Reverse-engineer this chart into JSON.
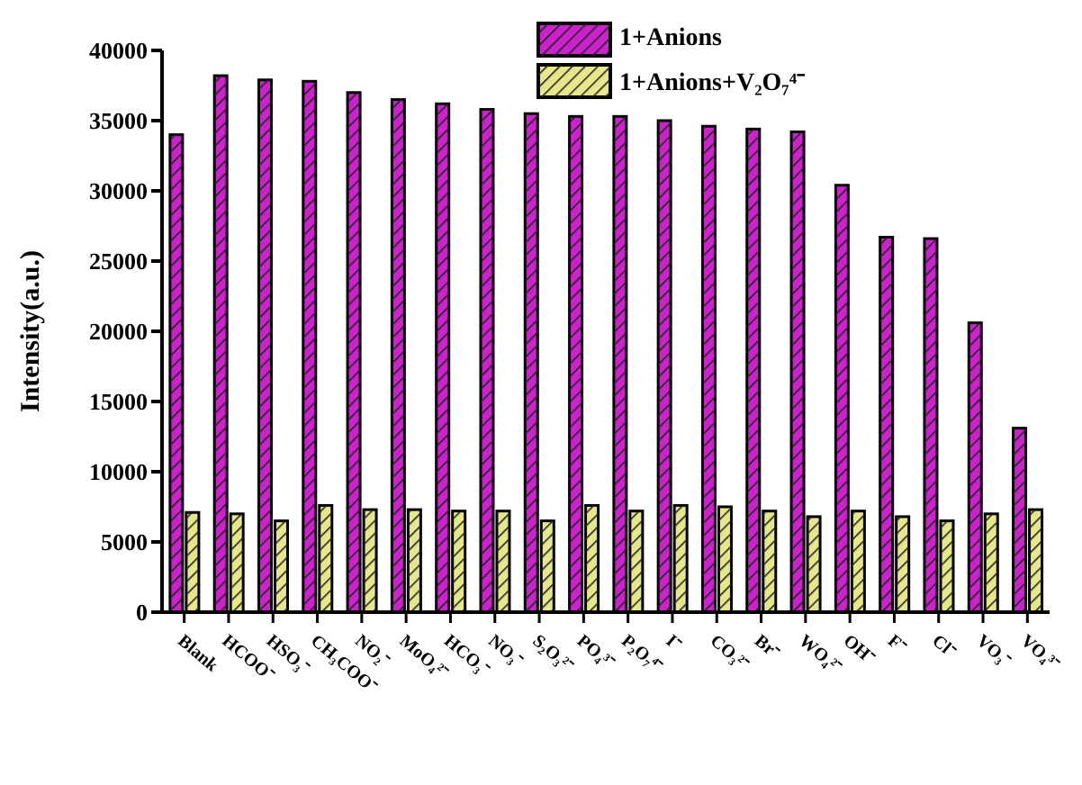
{
  "chart_data": {
    "type": "bar",
    "ylabel": "Intensity(a.u.)",
    "categories": [
      "Blank",
      "HCOO⁻",
      "HSO₃⁻",
      "CH₃COO⁻",
      "NO₂⁻",
      "MoO₄²⁻",
      "HCO₃⁻",
      "NO₃⁻",
      "S₂O₃²⁻",
      "PO₄³⁻",
      "P₂O₇⁴⁻",
      "I⁻",
      "CO₃²⁻",
      "Br⁻",
      "WO₄²⁻",
      "OH⁻",
      "F⁻",
      "Cl⁻",
      "VO₃⁻",
      "VO₄³⁻"
    ],
    "series": [
      {
        "name": "1+Anions",
        "color": "#cc22cc",
        "values": [
          34000,
          38200,
          37900,
          37800,
          37000,
          36500,
          36200,
          35800,
          35500,
          35300,
          35300,
          35000,
          34600,
          34400,
          34200,
          30400,
          26700,
          26600,
          20600,
          13100
        ]
      },
      {
        "name": "1+Anions+V₂O₇⁴⁻",
        "color": "#e6e68a",
        "values": [
          7100,
          7000,
          6500,
          7600,
          7300,
          7300,
          7200,
          7200,
          6500,
          7600,
          7200,
          7600,
          7500,
          7200,
          6800,
          7200,
          6800,
          6500,
          7000,
          7300
        ]
      }
    ],
    "ylim": [
      0,
      40000
    ],
    "yticks": [
      0,
      5000,
      10000,
      15000,
      20000,
      25000,
      30000,
      35000,
      40000
    ],
    "legend": "top",
    "grid": false
  }
}
